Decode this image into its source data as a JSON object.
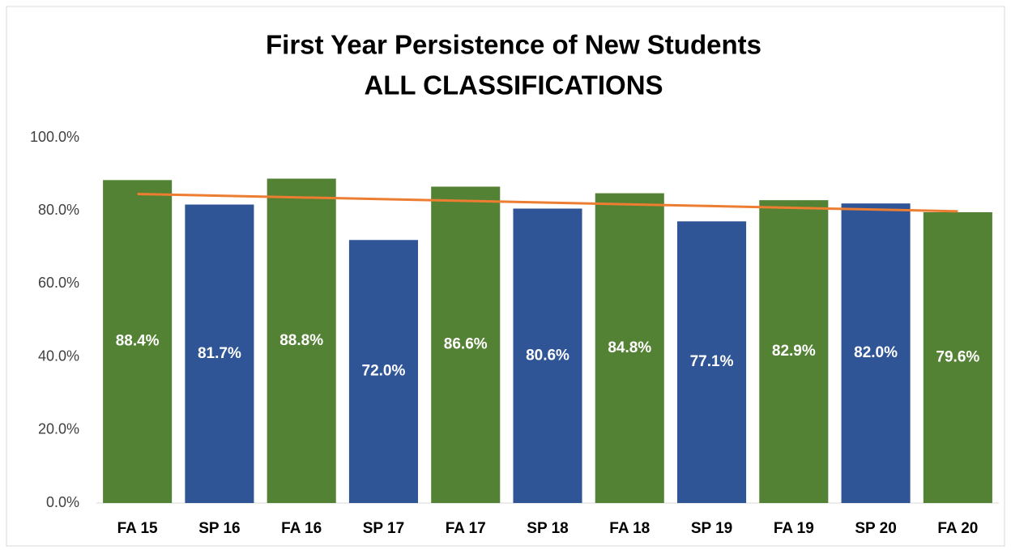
{
  "chart_data": {
    "type": "bar",
    "title": "First Year Persistence of New Students",
    "subtitle": "ALL CLASSIFICATIONS",
    "categories": [
      "FA 15",
      "SP 16",
      "FA 16",
      "SP 17",
      "FA 17",
      "SP 18",
      "FA 18",
      "SP 19",
      "FA 19",
      "SP 20",
      "FA 20"
    ],
    "values": [
      88.4,
      81.7,
      88.8,
      72.0,
      86.6,
      80.6,
      84.8,
      77.1,
      82.9,
      82.0,
      79.6
    ],
    "value_labels": [
      "88.4%",
      "81.7%",
      "88.8%",
      "72.0%",
      "86.6%",
      "80.6%",
      "84.8%",
      "77.1%",
      "82.9%",
      "82.0%",
      "79.6%"
    ],
    "colors": [
      "#548235",
      "#2f5597",
      "#548235",
      "#2f5597",
      "#548235",
      "#2f5597",
      "#548235",
      "#2f5597",
      "#548235",
      "#2f5597",
      "#548235"
    ],
    "ylim": [
      0,
      100
    ],
    "yticks": [
      {
        "value": 0,
        "label": "0.0%"
      },
      {
        "value": 20,
        "label": "20.0%"
      },
      {
        "value": 40,
        "label": "40.0%"
      },
      {
        "value": 60,
        "label": "60.0%"
      },
      {
        "value": 80,
        "label": "80.0%"
      },
      {
        "value": 100,
        "label": "100.0%"
      }
    ],
    "trendline": true,
    "trendline_color": "#ed7d31",
    "grid": false
  }
}
